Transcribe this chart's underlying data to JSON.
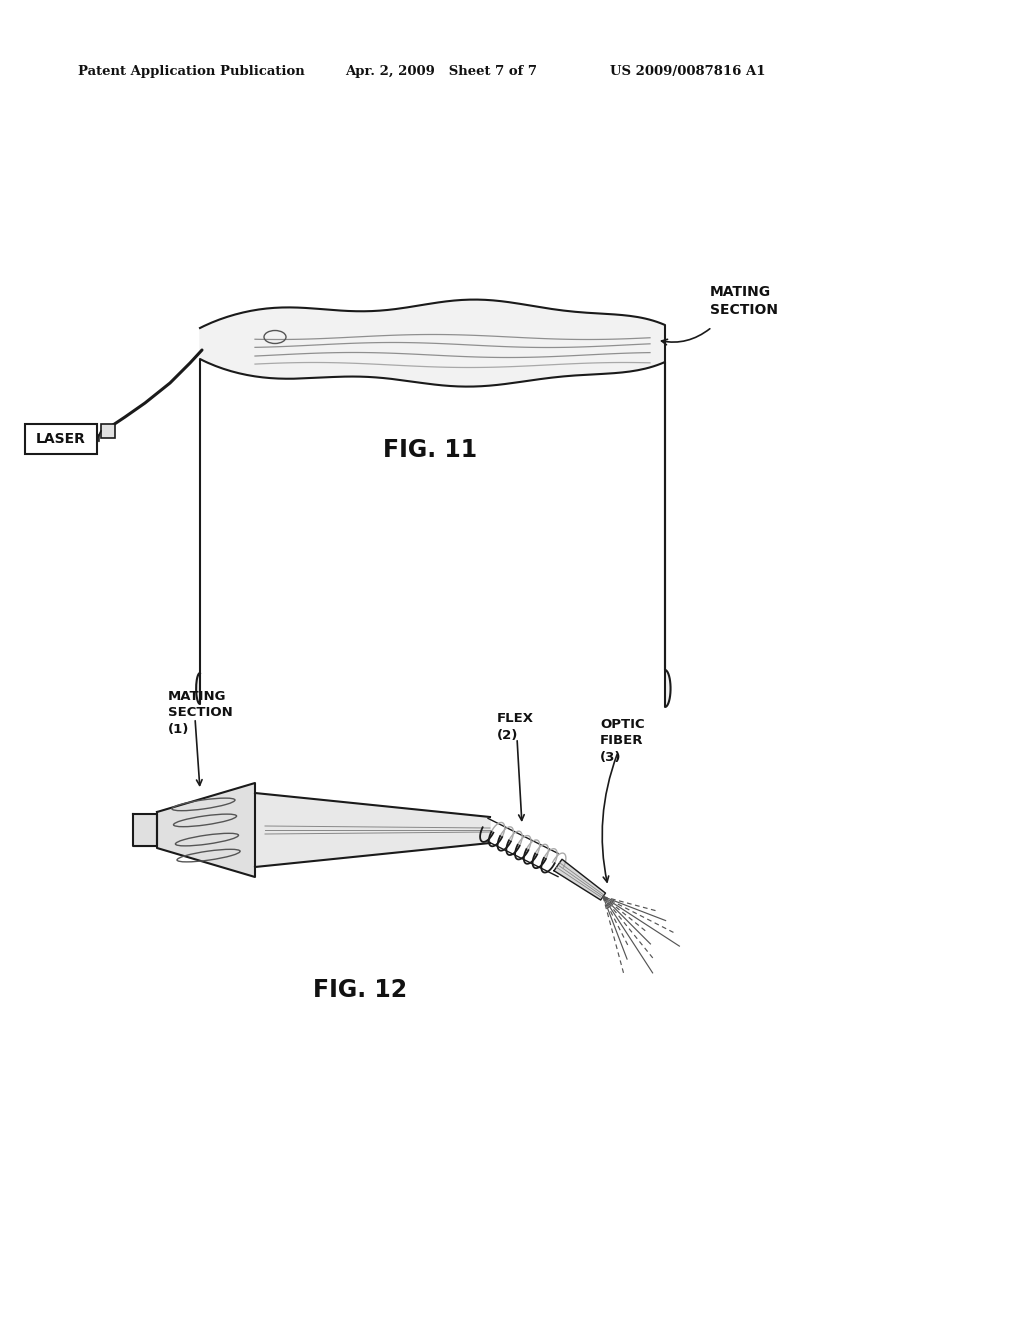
{
  "background_color": "#ffffff",
  "header_left": "Patent Application Publication",
  "header_mid": "Apr. 2, 2009   Sheet 7 of 7",
  "header_right": "US 2009/0087816 A1",
  "fig11_label": "FIG. 11",
  "fig12_label": "FIG. 12",
  "label_laser": "LASER",
  "label_mating_section": "MATING\nSECTION",
  "label_mating_section_1": "MATING\nSECTION\n(1)",
  "label_flex_2": "FLEX\n(2)",
  "label_optic_fiber_3": "OPTIC\nFIBER\n(3)"
}
